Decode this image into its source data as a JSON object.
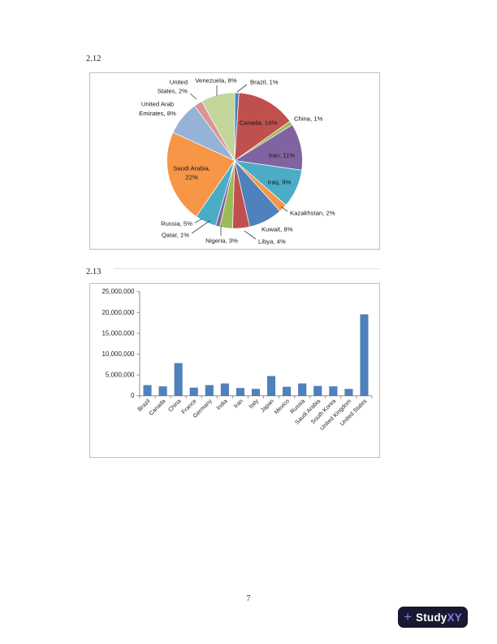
{
  "page": {
    "number": "7"
  },
  "figures": [
    {
      "label": "2.12"
    },
    {
      "label": "2.13"
    }
  ],
  "chart_data": [
    {
      "type": "pie",
      "figure": "2.12",
      "title": "",
      "legend": "none",
      "label_style": "category name with percentage, inside large slices / outside small slices with leader lines",
      "slices": [
        {
          "name": "Brazil",
          "pct": 1,
          "label": "Brazil, 1%",
          "color": "#4F81BD"
        },
        {
          "name": "Canada",
          "pct": 14,
          "label": "Canada, 14%",
          "color": "#C0504D"
        },
        {
          "name": "China",
          "pct": 1,
          "label": "China, 1%",
          "color": "#9BBB59"
        },
        {
          "name": "Iran",
          "pct": 11,
          "label": "Iran, 11%",
          "color": "#8064A2"
        },
        {
          "name": "Iraq",
          "pct": 9,
          "label": "Iraq, 9%",
          "color": "#4BACC6"
        },
        {
          "name": "Kazakhstan",
          "pct": 2,
          "label": "Kazakhstan, 2%",
          "color": "#F79646"
        },
        {
          "name": "Kuwait",
          "pct": 8,
          "label": "Kuwait, 8%",
          "color": "#4F81BD"
        },
        {
          "name": "Libya",
          "pct": 4,
          "label": "Libya, 4%",
          "color": "#C0504D"
        },
        {
          "name": "Nigeria",
          "pct": 3,
          "label": "Nigeria, 3%",
          "color": "#9BBB59"
        },
        {
          "name": "Qatar",
          "pct": 1,
          "label": "Qatar, 1%",
          "color": "#8064A2"
        },
        {
          "name": "Russia",
          "pct": 5,
          "label": "Russia, 5%",
          "color": "#4BACC6"
        },
        {
          "name": "Saudi Arabia",
          "pct": 22,
          "label": "Saudi Arabia, 22%",
          "color": "#F79646",
          "label_lines": [
            "Saudi Arabia,",
            "22%"
          ]
        },
        {
          "name": "United Arab Emirates",
          "pct": 8,
          "label": "United Arab Emirates, 8%",
          "color": "#95B3D7",
          "label_lines": [
            "United Arab",
            "Emirates, 8%"
          ]
        },
        {
          "name": "United States",
          "pct": 2,
          "label": "United States, 2%",
          "color": "#D99694",
          "label_lines": [
            "United",
            "States, 2%"
          ]
        },
        {
          "name": "Venezuela",
          "pct": 8,
          "label": "Venezuela, 8%",
          "color": "#C3D69B"
        }
      ]
    },
    {
      "type": "bar",
      "figure": "2.13",
      "title": "",
      "legend": "none",
      "grid": false,
      "categories": [
        "Brazil",
        "Canada",
        "China",
        "France",
        "Germany",
        "India",
        "Iran",
        "Italy",
        "Japan",
        "Mexico",
        "Russia",
        "Saudi Arabia",
        "South Korea",
        "United Kingdom",
        "United States"
      ],
      "values": [
        2500000,
        2200000,
        7800000,
        1900000,
        2500000,
        2900000,
        1800000,
        1600000,
        4700000,
        2100000,
        2900000,
        2300000,
        2200000,
        1600000,
        19500000
      ],
      "ylim": [
        0,
        25000000
      ],
      "ytick_interval": 5000000,
      "ytick_labels": [
        "0",
        "5,000,000",
        "10,000,000",
        "15,000,000",
        "20,000,000",
        "25,000,000"
      ],
      "xlabel": "",
      "ylabel": "",
      "bar_color": "#4F81BD"
    }
  ],
  "branding": {
    "logo_symbol": "+",
    "logo_text_primary": "Study",
    "logo_text_accent": "XY",
    "logo_bg": "#171930",
    "logo_accent_color": "#8678E8",
    "logo_primary_color": "#FFFFFF"
  }
}
